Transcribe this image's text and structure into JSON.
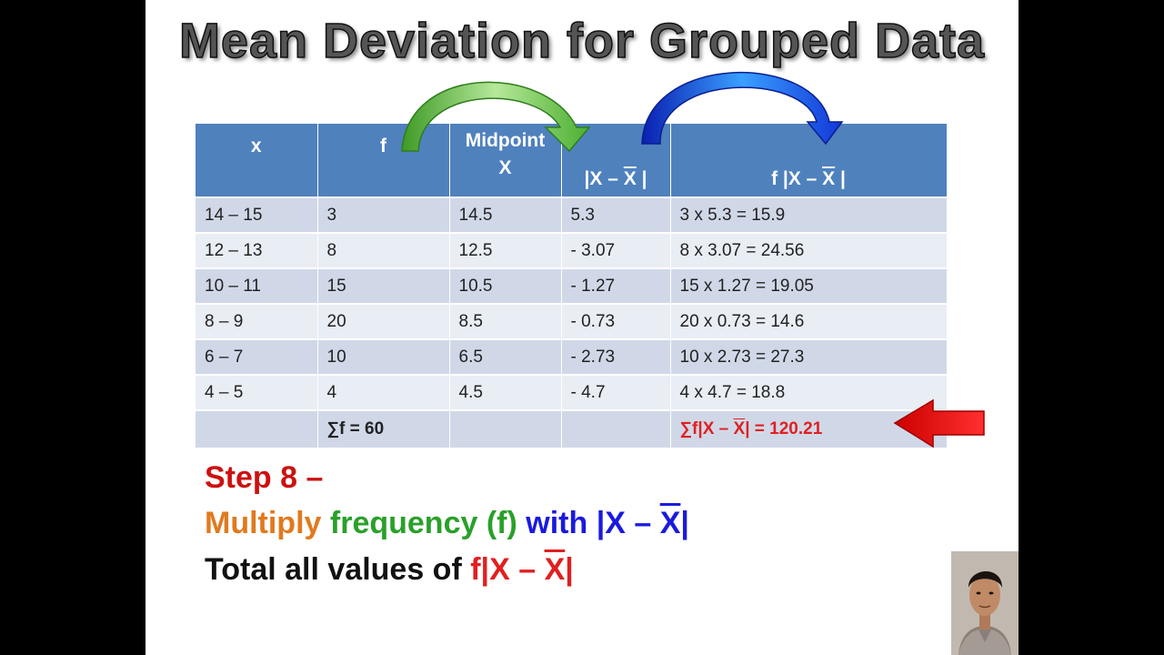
{
  "title": "Mean Deviation for Grouped Data",
  "table": {
    "headers": {
      "x": "x",
      "f": "f",
      "midpoint_1": "Midpoint",
      "midpoint_2": "X",
      "abs_dev_prefix": "|X – ",
      "abs_dev_bar": "X",
      "abs_dev_suffix": " |",
      "f_abs_prefix": "f |X – ",
      "f_abs_bar": "X",
      "f_abs_suffix": " |"
    },
    "rows": [
      {
        "x": "14 – 15",
        "f": "3",
        "mid": "14.5",
        "dev": "5.3",
        "prod": "3 x 5.3 = 15.9"
      },
      {
        "x": "12 – 13",
        "f": "8",
        "mid": "12.5",
        "dev": "- 3.07",
        "prod": "8 x 3.07 = 24.56"
      },
      {
        "x": "10 – 11",
        "f": "15",
        "mid": "10.5",
        "dev": "- 1.27",
        "prod": "15 x 1.27 = 19.05"
      },
      {
        "x": "8 – 9",
        "f": "20",
        "mid": "8.5",
        "dev": "- 0.73",
        "prod": "20 x 0.73 = 14.6"
      },
      {
        "x": "6 – 7",
        "f": "10",
        "mid": "6.5",
        "dev": "- 2.73",
        "prod": "10 x 2.73 = 27.3"
      },
      {
        "x": "4 – 5",
        "f": "4",
        "mid": "4.5",
        "dev": "- 4.7",
        "prod": "4 x 4.7 = 18.8"
      }
    ],
    "total_f": "∑f = 60",
    "total_prod_prefix": "∑f|X – ",
    "total_prod_bar": "X",
    "total_prod_suffix": "| = 120.21"
  },
  "step": {
    "title": "Step 8 –",
    "multiply": "Multiply",
    "frequency": "frequency (f)",
    "with_prefix": "with |X – ",
    "with_bar": "X",
    "with_suffix": "|",
    "total_text": "Total all values of ",
    "total_f_prefix": "f|X – ",
    "total_f_bar": "X",
    "total_f_suffix": "|"
  },
  "colors": {
    "header_blue": "#4f81bd",
    "row_dark": "#d0d8e8",
    "row_light": "#e9edf4",
    "red": "#e02020",
    "orange": "#e07a1e",
    "green": "#2aa02a",
    "blue": "#1a1adf",
    "green_arrow": "#5dbb3a",
    "blue_arrow": "#1a3fe0"
  }
}
